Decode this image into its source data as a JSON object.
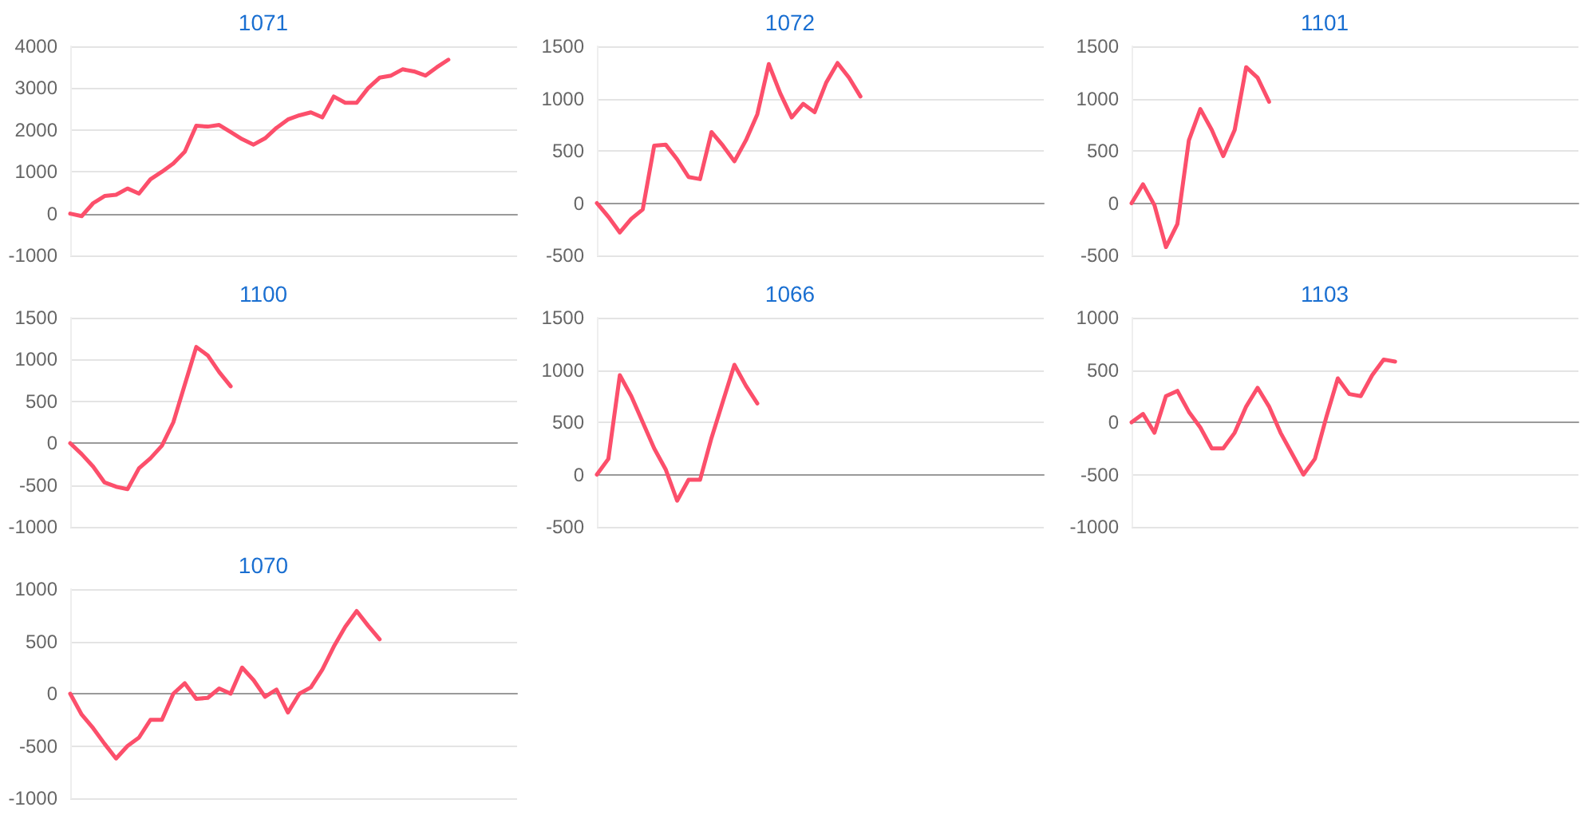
{
  "chart_data": [
    {
      "type": "line",
      "title": "1071",
      "categories": [
        null,
        null,
        null,
        null,
        null,
        null,
        null,
        null,
        null,
        null,
        null,
        null,
        null,
        null,
        null,
        null,
        null,
        null,
        null,
        null,
        null,
        null,
        null,
        null,
        null,
        null,
        null,
        null,
        null,
        null,
        null,
        null,
        null,
        null,
        null,
        null,
        null,
        null,
        null,
        null
      ],
      "series": [
        {
          "color": "#fc4f6b",
          "values": [
            0,
            -60,
            250,
            420,
            450,
            600,
            480,
            820,
            1000,
            1200,
            1480,
            2100,
            2080,
            2120,
            1950,
            1780,
            1650,
            1800,
            2050,
            2250,
            2350,
            2420,
            2300,
            2800,
            2650,
            2650,
            3000,
            3250,
            3300,
            3450,
            3400,
            3300,
            3500,
            3680,
            null,
            null,
            null,
            null,
            null,
            null
          ]
        }
      ],
      "ylim": [
        -1000,
        4000
      ],
      "yticks": [
        -1000,
        0,
        1000,
        2000,
        3000,
        4000
      ],
      "grid": "y",
      "tick_labels": "y"
    },
    {
      "type": "line",
      "title": "1072",
      "categories": [
        null,
        null,
        null,
        null,
        null,
        null,
        null,
        null,
        null,
        null,
        null,
        null,
        null,
        null,
        null,
        null,
        null,
        null,
        null,
        null,
        null,
        null,
        null,
        null,
        null,
        null,
        null,
        null,
        null,
        null,
        null,
        null,
        null,
        null,
        null,
        null,
        null,
        null,
        null,
        null
      ],
      "series": [
        {
          "color": "#fc4f6b",
          "values": [
            0,
            -130,
            -280,
            -150,
            -60,
            550,
            560,
            420,
            250,
            230,
            680,
            550,
            400,
            600,
            850,
            1330,
            1050,
            820,
            950,
            870,
            1150,
            1340,
            1200,
            1020,
            null,
            null,
            null,
            null,
            null,
            null,
            null,
            null,
            null,
            null,
            null,
            null,
            null,
            null,
            null,
            null
          ]
        }
      ],
      "ylim": [
        -500,
        1500
      ],
      "yticks": [
        -500,
        0,
        500,
        1000,
        1500
      ],
      "grid": "y",
      "tick_labels": "y"
    },
    {
      "type": "line",
      "title": "1101",
      "categories": [
        null,
        null,
        null,
        null,
        null,
        null,
        null,
        null,
        null,
        null,
        null,
        null,
        null,
        null,
        null,
        null,
        null,
        null,
        null,
        null,
        null,
        null,
        null,
        null,
        null,
        null,
        null,
        null,
        null,
        null,
        null,
        null,
        null,
        null,
        null,
        null,
        null,
        null,
        null,
        null
      ],
      "series": [
        {
          "color": "#fc4f6b",
          "values": [
            0,
            180,
            -20,
            -420,
            -200,
            600,
            900,
            700,
            450,
            700,
            1300,
            1200,
            970,
            null,
            null,
            null,
            null,
            null,
            null,
            null,
            null,
            null,
            null,
            null,
            null,
            null,
            null,
            null,
            null,
            null,
            null,
            null,
            null,
            null,
            null,
            null,
            null,
            null,
            null,
            null
          ]
        }
      ],
      "ylim": [
        -500,
        1500
      ],
      "yticks": [
        -500,
        0,
        500,
        1000,
        1500
      ],
      "grid": "y",
      "tick_labels": "y"
    },
    {
      "type": "line",
      "title": "1100",
      "categories": [
        null,
        null,
        null,
        null,
        null,
        null,
        null,
        null,
        null,
        null,
        null,
        null,
        null,
        null,
        null,
        null,
        null,
        null,
        null,
        null,
        null,
        null,
        null,
        null,
        null,
        null,
        null,
        null,
        null,
        null,
        null,
        null,
        null,
        null,
        null,
        null,
        null,
        null,
        null,
        null
      ],
      "series": [
        {
          "color": "#fc4f6b",
          "values": [
            0,
            -130,
            -280,
            -470,
            -520,
            -550,
            -300,
            -180,
            -30,
            250,
            700,
            1150,
            1050,
            850,
            680,
            null,
            null,
            null,
            null,
            null,
            null,
            null,
            null,
            null,
            null,
            null,
            null,
            null,
            null,
            null,
            null,
            null,
            null,
            null,
            null,
            null,
            null,
            null,
            null,
            null
          ]
        }
      ],
      "ylim": [
        -1000,
        1500
      ],
      "yticks": [
        -1000,
        -500,
        0,
        500,
        1000,
        1500
      ],
      "grid": "y",
      "tick_labels": "y"
    },
    {
      "type": "line",
      "title": "1066",
      "categories": [
        null,
        null,
        null,
        null,
        null,
        null,
        null,
        null,
        null,
        null,
        null,
        null,
        null,
        null,
        null,
        null,
        null,
        null,
        null,
        null,
        null,
        null,
        null,
        null,
        null,
        null,
        null,
        null,
        null,
        null,
        null,
        null,
        null,
        null,
        null,
        null,
        null,
        null,
        null,
        null
      ],
      "series": [
        {
          "color": "#fc4f6b",
          "values": [
            0,
            150,
            950,
            750,
            500,
            250,
            50,
            -250,
            -50,
            -50,
            350,
            700,
            1050,
            850,
            680,
            null,
            null,
            null,
            null,
            null,
            null,
            null,
            null,
            null,
            null,
            null,
            null,
            null,
            null,
            null,
            null,
            null,
            null,
            null,
            null,
            null,
            null,
            null,
            null,
            null
          ]
        }
      ],
      "ylim": [
        -500,
        1500
      ],
      "yticks": [
        -500,
        0,
        500,
        1000,
        1500
      ],
      "grid": "y",
      "tick_labels": "y"
    },
    {
      "type": "line",
      "title": "1103",
      "categories": [
        null,
        null,
        null,
        null,
        null,
        null,
        null,
        null,
        null,
        null,
        null,
        null,
        null,
        null,
        null,
        null,
        null,
        null,
        null,
        null,
        null,
        null,
        null,
        null,
        null,
        null,
        null,
        null,
        null,
        null,
        null,
        null,
        null,
        null,
        null,
        null,
        null,
        null,
        null,
        null
      ],
      "series": [
        {
          "color": "#fc4f6b",
          "values": [
            0,
            80,
            -100,
            250,
            300,
            100,
            -50,
            -250,
            -250,
            -100,
            150,
            330,
            150,
            -100,
            -300,
            -500,
            -350,
            50,
            420,
            270,
            250,
            450,
            600,
            580,
            null,
            null,
            null,
            null,
            null,
            null,
            null,
            null,
            null,
            null,
            null,
            null,
            null,
            null,
            null,
            null
          ]
        }
      ],
      "ylim": [
        -1000,
        1000
      ],
      "yticks": [
        -1000,
        -500,
        0,
        500,
        1000
      ],
      "grid": "y",
      "tick_labels": "y"
    },
    {
      "type": "line",
      "title": "1070",
      "categories": [
        null,
        null,
        null,
        null,
        null,
        null,
        null,
        null,
        null,
        null,
        null,
        null,
        null,
        null,
        null,
        null,
        null,
        null,
        null,
        null,
        null,
        null,
        null,
        null,
        null,
        null,
        null,
        null,
        null,
        null,
        null,
        null,
        null,
        null,
        null,
        null,
        null,
        null,
        null,
        null
      ],
      "series": [
        {
          "color": "#fc4f6b",
          "values": [
            0,
            -200,
            -330,
            -480,
            -620,
            -500,
            -420,
            -250,
            -250,
            0,
            100,
            -50,
            -40,
            50,
            0,
            250,
            130,
            -30,
            40,
            -180,
            0,
            60,
            230,
            450,
            640,
            790,
            650,
            520,
            null,
            null,
            null,
            null,
            null,
            null,
            null,
            null,
            null,
            null,
            null,
            null
          ]
        }
      ],
      "ylim": [
        -1000,
        1000
      ],
      "yticks": [
        -1000,
        -500,
        0,
        500,
        1000
      ],
      "grid": "y",
      "tick_labels": "y"
    }
  ]
}
